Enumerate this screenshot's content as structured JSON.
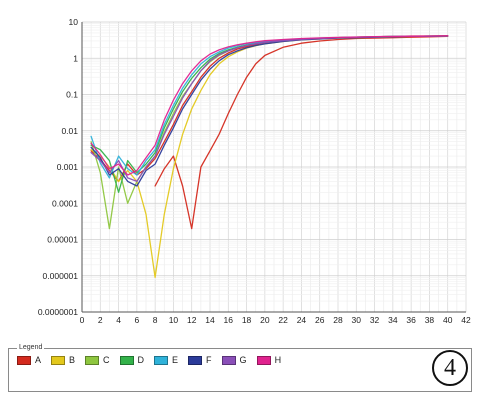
{
  "chart_data": {
    "type": "line",
    "title": "",
    "xlabel": "",
    "ylabel": "",
    "xlim": [
      0,
      42
    ],
    "ylim": [
      1e-07,
      10
    ],
    "yscale": "log",
    "grid": true,
    "x_ticks": [
      0,
      2,
      4,
      6,
      8,
      10,
      12,
      14,
      16,
      18,
      20,
      22,
      24,
      26,
      28,
      30,
      32,
      34,
      36,
      38,
      40,
      42
    ],
    "y_ticks": [
      1e-07,
      1e-06,
      1e-05,
      0.0001,
      0.001,
      0.01,
      0.1,
      1,
      10
    ],
    "y_tick_labels": [
      "0.0000001",
      "0.000001",
      "0.00001",
      "0.0001",
      "0.001",
      "0.01",
      "0.1",
      "1",
      "10"
    ],
    "legend_position": "bottom",
    "legend_title": "Legend",
    "series": [
      {
        "name": "A",
        "color": "#d42a1e",
        "curves": [
          {
            "x": [
              1,
              2,
              3,
              4,
              5,
              6,
              7,
              8,
              9,
              10,
              11,
              12,
              13,
              14,
              15,
              16,
              17,
              18,
              19,
              20,
              22,
              24,
              26,
              28,
              30,
              32,
              34,
              36,
              38,
              40
            ],
            "y": [
              0.0028,
              0.0016,
              0.0008,
              0.0004,
              0.0012,
              0.0006,
              0.0009,
              0.0017,
              0.005,
              0.015,
              0.05,
              0.12,
              0.3,
              0.6,
              1.0,
              1.4,
              1.8,
              2.1,
              2.4,
              2.7,
              3.0,
              3.3,
              3.5,
              3.7,
              3.8,
              3.9,
              4.0,
              4.1,
              4.1,
              4.2
            ]
          },
          {
            "x": [
              8,
              9,
              10,
              11,
              12,
              13,
              14,
              15,
              16,
              17,
              18,
              19,
              20,
              22,
              24,
              26,
              28,
              30,
              32,
              34,
              36,
              38,
              40
            ],
            "y": [
              0.0003,
              0.0009,
              0.002,
              0.0003,
              2e-05,
              0.001,
              0.0028,
              0.008,
              0.03,
              0.1,
              0.3,
              0.7,
              1.2,
              2.0,
              2.6,
              3.0,
              3.3,
              3.5,
              3.6,
              3.7,
              3.8,
              3.9,
              4.0
            ]
          }
        ]
      },
      {
        "name": "B",
        "color": "#e3c81c",
        "curves": [
          {
            "x": [
              1,
              2,
              3,
              4,
              5,
              6,
              7,
              8,
              9,
              10,
              11,
              12,
              13,
              14,
              15,
              16,
              17,
              18,
              19,
              20,
              22,
              24,
              26,
              28,
              30,
              32,
              34,
              36,
              38,
              40
            ],
            "y": [
              0.003,
              0.002,
              0.001,
              0.0004,
              0.0008,
              0.0004,
              5e-05,
              9e-07,
              5e-05,
              0.0009,
              0.008,
              0.04,
              0.13,
              0.35,
              0.7,
              1.1,
              1.5,
              1.9,
              2.2,
              2.5,
              2.9,
              3.2,
              3.4,
              3.6,
              3.7,
              3.8,
              3.9,
              4.0,
              4.0,
              4.1
            ]
          }
        ]
      },
      {
        "name": "C",
        "color": "#8ec63f",
        "curves": [
          {
            "x": [
              1,
              2,
              3,
              4,
              5,
              6,
              7,
              8,
              9,
              10,
              11,
              12,
              13,
              14,
              15,
              16,
              17,
              18,
              19,
              20,
              22,
              24,
              26,
              28,
              30,
              32,
              34,
              36,
              38,
              40
            ],
            "y": [
              0.005,
              0.0007,
              2e-05,
              0.001,
              0.0001,
              0.0004,
              0.001,
              0.002,
              0.009,
              0.03,
              0.09,
              0.2,
              0.45,
              0.8,
              1.2,
              1.6,
              2.0,
              2.3,
              2.6,
              2.8,
              3.1,
              3.3,
              3.5,
              3.6,
              3.7,
              3.8,
              3.9,
              4.0,
              4.0,
              4.1
            ]
          }
        ]
      },
      {
        "name": "D",
        "color": "#33b24a",
        "curves": [
          {
            "x": [
              1,
              2,
              3,
              4,
              5,
              6,
              7,
              8,
              9,
              10,
              11,
              12,
              13,
              14,
              15,
              16,
              17,
              18,
              19,
              20,
              22,
              24,
              26,
              28,
              30,
              32,
              34,
              36,
              38,
              40
            ],
            "y": [
              0.004,
              0.003,
              0.0015,
              0.0002,
              0.0015,
              0.0007,
              0.0012,
              0.0025,
              0.012,
              0.04,
              0.12,
              0.28,
              0.55,
              0.95,
              1.35,
              1.7,
              2.0,
              2.3,
              2.6,
              2.8,
              3.1,
              3.4,
              3.6,
              3.7,
              3.8,
              3.9,
              4.0,
              4.0,
              4.1,
              4.1
            ]
          }
        ]
      },
      {
        "name": "E",
        "color": "#2fb2d9",
        "curves": [
          {
            "x": [
              1,
              2,
              3,
              4,
              5,
              6,
              7,
              8,
              9,
              10,
              11,
              12,
              13,
              14,
              15,
              16,
              17,
              18,
              19,
              20,
              22,
              24,
              26,
              28,
              30,
              32,
              34,
              36,
              38,
              40
            ],
            "y": [
              0.007,
              0.0013,
              0.0005,
              0.002,
              0.0009,
              0.0006,
              0.0015,
              0.003,
              0.015,
              0.05,
              0.15,
              0.35,
              0.7,
              1.1,
              1.5,
              1.9,
              2.2,
              2.5,
              2.7,
              2.9,
              3.2,
              3.4,
              3.6,
              3.7,
              3.8,
              3.9,
              4.0,
              4.0,
              4.1,
              4.1
            ]
          }
        ]
      },
      {
        "name": "F",
        "color": "#2b3b9a",
        "curves": [
          {
            "x": [
              1,
              2,
              3,
              4,
              5,
              6,
              7,
              8,
              9,
              10,
              11,
              12,
              13,
              14,
              15,
              16,
              17,
              18,
              19,
              20,
              22,
              24,
              26,
              28,
              30,
              32,
              34,
              36,
              38,
              40
            ],
            "y": [
              0.0035,
              0.0018,
              0.0006,
              0.0009,
              0.0004,
              0.0003,
              0.0008,
              0.0012,
              0.004,
              0.012,
              0.04,
              0.1,
              0.25,
              0.5,
              0.85,
              1.25,
              1.6,
              1.95,
              2.25,
              2.5,
              2.9,
              3.2,
              3.4,
              3.6,
              3.7,
              3.8,
              3.9,
              4.0,
              4.0,
              4.1
            ]
          }
        ]
      },
      {
        "name": "G",
        "color": "#8a4fb8",
        "curves": [
          {
            "x": [
              1,
              2,
              3,
              4,
              5,
              6,
              7,
              8,
              9,
              10,
              11,
              12,
              13,
              14,
              15,
              16,
              17,
              18,
              19,
              20,
              22,
              24,
              26,
              28,
              30,
              32,
              34,
              36,
              38,
              40
            ],
            "y": [
              0.0025,
              0.0015,
              0.0007,
              0.0015,
              0.0005,
              0.0004,
              0.001,
              0.002,
              0.008,
              0.025,
              0.08,
              0.2,
              0.45,
              0.85,
              1.25,
              1.6,
              1.95,
              2.25,
              2.5,
              2.75,
              3.05,
              3.3,
              3.5,
              3.65,
              3.75,
              3.85,
              3.95,
              4.0,
              4.05,
              4.1
            ]
          }
        ]
      },
      {
        "name": "H",
        "color": "#e0228e",
        "curves": [
          {
            "x": [
              1,
              2,
              3,
              4,
              5,
              6,
              7,
              8,
              9,
              10,
              11,
              12,
              13,
              14,
              15,
              16,
              17,
              18,
              19,
              20,
              22,
              24,
              26,
              28,
              30,
              32,
              34,
              36,
              38,
              40
            ],
            "y": [
              0.0045,
              0.0022,
              0.0009,
              0.0012,
              0.0006,
              0.0008,
              0.0018,
              0.004,
              0.02,
              0.07,
              0.2,
              0.45,
              0.85,
              1.3,
              1.7,
              2.05,
              2.35,
              2.6,
              2.85,
              3.05,
              3.3,
              3.5,
              3.65,
              3.75,
              3.85,
              3.95,
              4.0,
              4.05,
              4.1,
              4.15
            ]
          }
        ]
      }
    ]
  },
  "legend": {
    "title": "Legend",
    "items": [
      {
        "label": "A",
        "color": "#d42a1e"
      },
      {
        "label": "B",
        "color": "#e3c81c"
      },
      {
        "label": "C",
        "color": "#8ec63f"
      },
      {
        "label": "D",
        "color": "#33b24a"
      },
      {
        "label": "E",
        "color": "#2fb2d9"
      },
      {
        "label": "F",
        "color": "#2b3b9a"
      },
      {
        "label": "G",
        "color": "#8a4fb8"
      },
      {
        "label": "H",
        "color": "#e0228e"
      }
    ]
  },
  "badge": {
    "text": "4"
  }
}
